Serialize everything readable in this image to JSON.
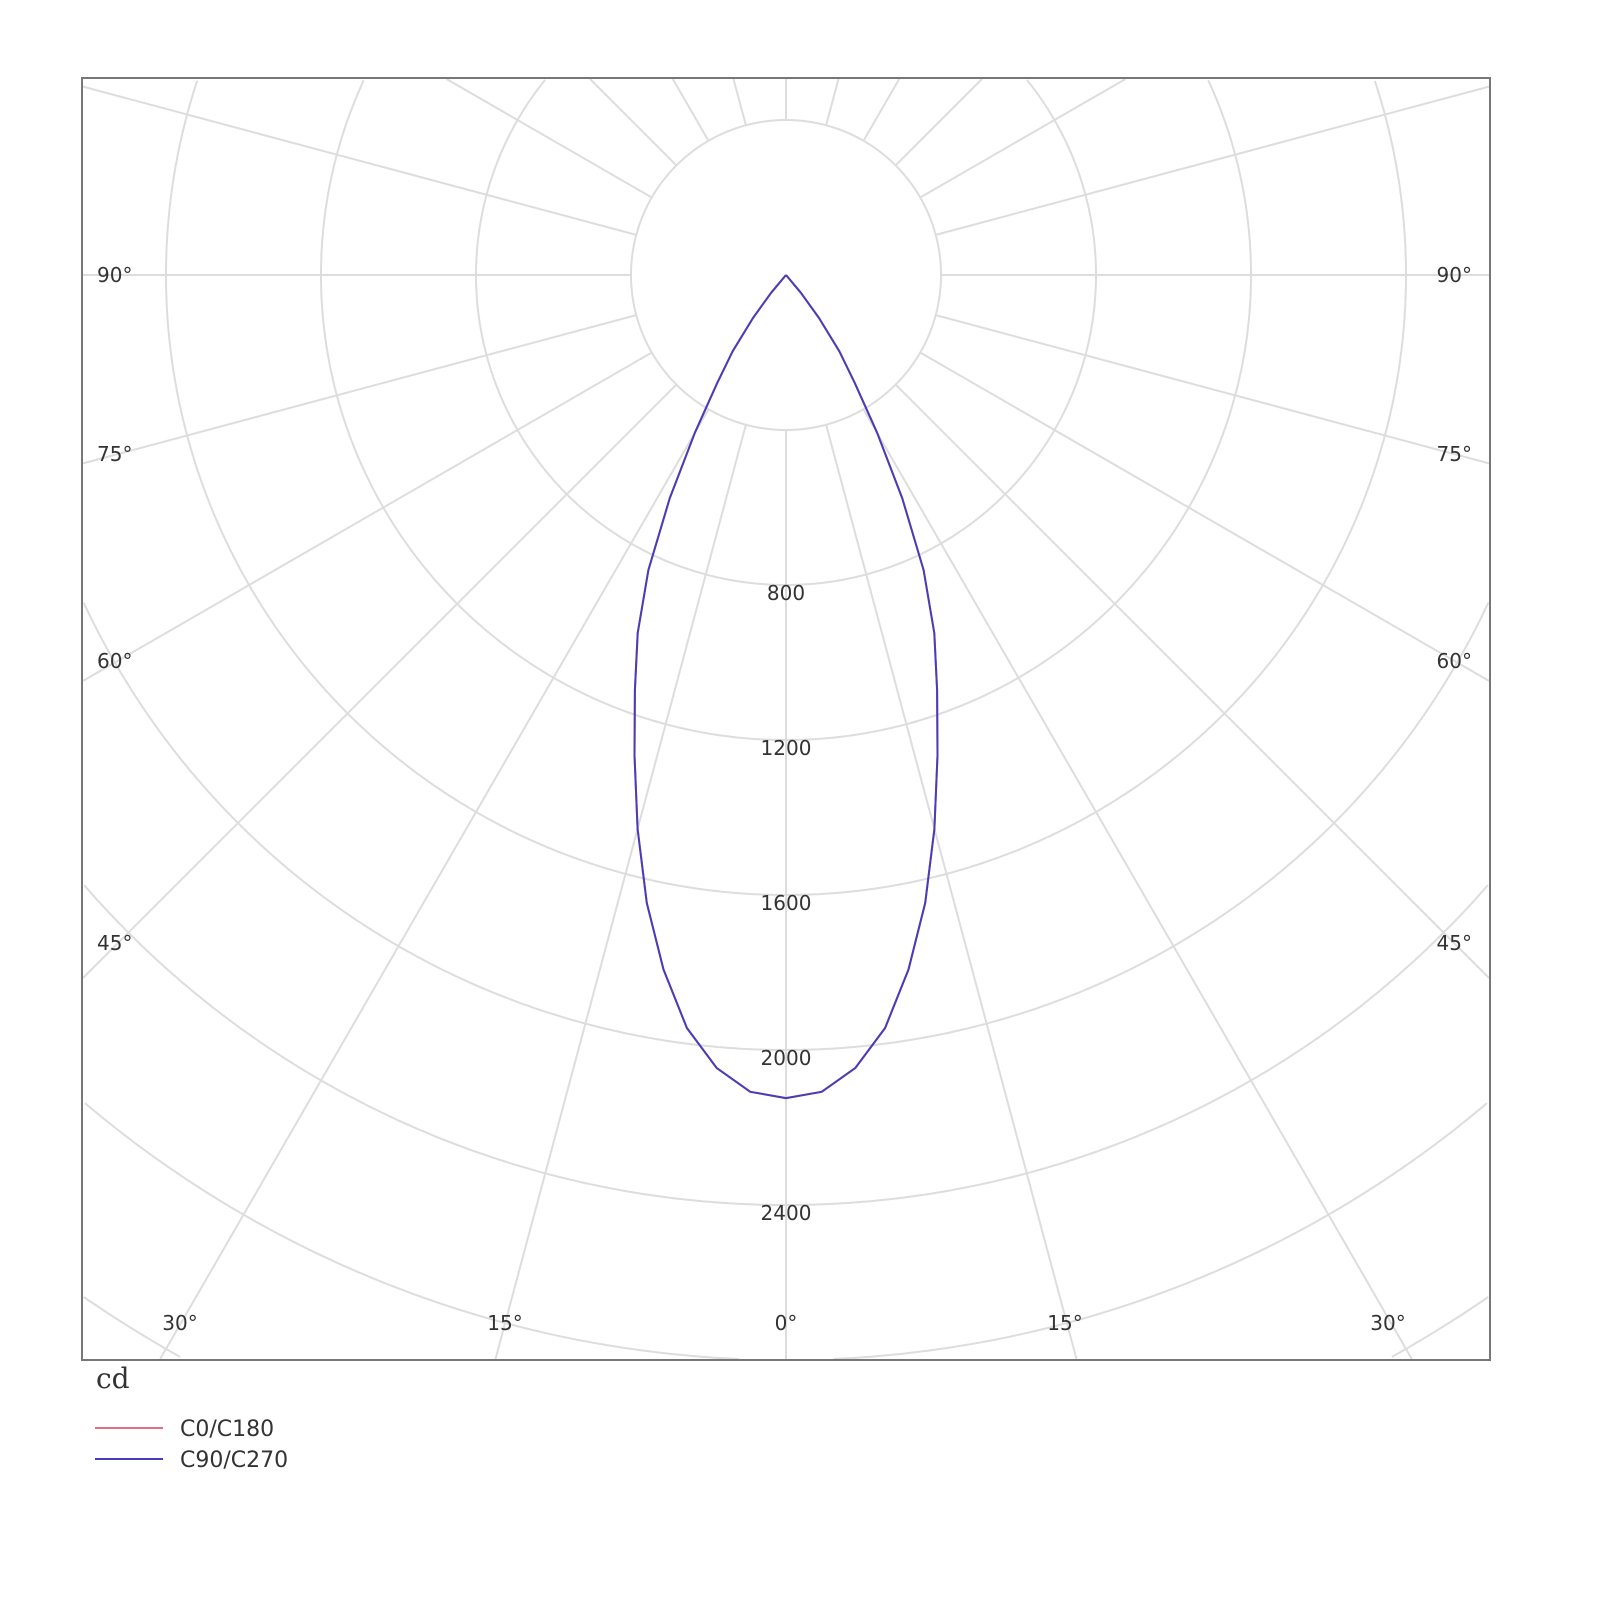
{
  "chart_data": {
    "type": "polar",
    "unit": "cd",
    "radial_ticks": [
      800,
      1200,
      1600,
      2000,
      2400
    ],
    "radial_grid_step": 400,
    "angle_ticks": {
      "bottom": [
        "30°",
        "15°",
        "0°",
        "15°",
        "30°"
      ],
      "left": [
        "90°",
        "75°",
        "60°",
        "45°"
      ],
      "right": [
        "90°",
        "75°",
        "60°",
        "45°"
      ]
    },
    "angle_grid_step_deg": 15,
    "grid": true,
    "legend_placement": "bottom-left",
    "angles_deg": [
      0,
      2.5,
      5,
      7.5,
      10,
      12.5,
      15,
      17.5,
      20,
      22.5,
      25,
      27.5,
      30,
      32.5,
      35,
      37.5,
      40,
      45
    ],
    "series": [
      {
        "name": "C0/C180",
        "color": "#e07080",
        "values": [
          2124,
          2110,
          2054,
          1960,
          1820,
          1660,
          1480,
          1300,
          1140,
          1000,
          840,
          650,
          470,
          330,
          240,
          140,
          60,
          0
        ]
      },
      {
        "name": "C90/C270",
        "color": "#4a3cb8",
        "values": [
          2124,
          2110,
          2054,
          1960,
          1820,
          1660,
          1480,
          1300,
          1140,
          1000,
          840,
          650,
          470,
          330,
          240,
          140,
          60,
          0
        ]
      }
    ],
    "colors": {
      "grid": "#dddddd",
      "frame": "#777777"
    }
  }
}
